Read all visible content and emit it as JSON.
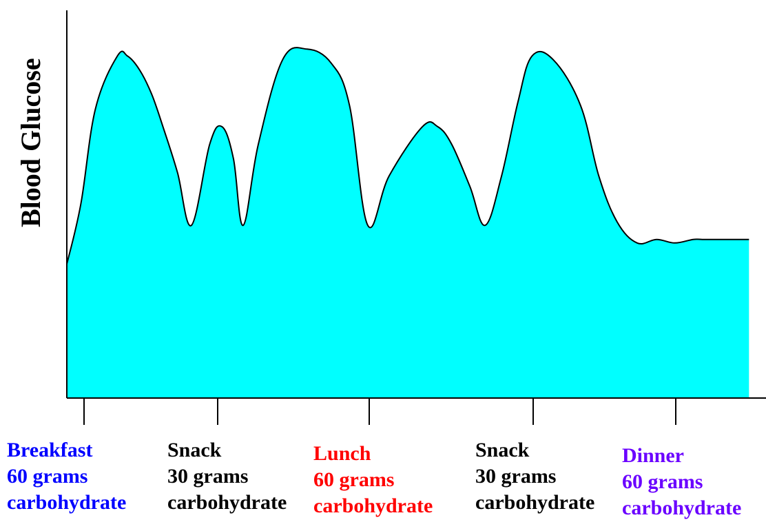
{
  "chart_data": {
    "type": "area",
    "title": "",
    "xlabel": "",
    "ylabel": "Blood Glucose",
    "fill_color": "#00ffff",
    "line_color": "#000000",
    "grid": false,
    "legend": "none",
    "meals": [
      {
        "name": "Breakfast",
        "amount": "60 grams",
        "unit": "carbohydrate",
        "color": "#0000ff"
      },
      {
        "name": "Snack",
        "amount": "30 grams",
        "unit": "carbohydrate",
        "color": "#000000"
      },
      {
        "name": "Lunch",
        "amount": "60 grams",
        "unit": "carbohydrate",
        "color": "#ff0000"
      },
      {
        "name": "Snack",
        "amount": "30 grams",
        "unit": "carbohydrate",
        "color": "#000000"
      },
      {
        "name": "Dinner",
        "amount": "60 grams",
        "unit": "carbohydrate",
        "color": "#6a00ff"
      }
    ],
    "curve": {
      "x": [
        0,
        0.23,
        0.47,
        0.83,
        1.0,
        1.2,
        1.4,
        1.6,
        1.82,
        2.05,
        2.35,
        2.55,
        2.74,
        2.9,
        3.15,
        3.55,
        3.95,
        4.35,
        4.65,
        4.95,
        5.3,
        5.85,
        6.1,
        6.33,
        6.63,
        6.88,
        7.15,
        7.42,
        7.65,
        8.0,
        8.45,
        8.75,
        9.05,
        9.38,
        9.7,
        10.0,
        10.3,
        10.45,
        10.58,
        10.75,
        11.0,
        11.22
      ],
      "y": [
        38,
        55,
        82,
        97,
        97,
        93,
        86,
        76,
        64,
        49,
        72,
        77,
        68,
        49,
        72,
        96,
        99,
        95,
        83,
        49,
        63,
        77,
        77,
        72,
        60,
        49,
        63,
        84,
        97,
        96,
        83,
        63,
        50,
        44,
        45,
        44,
        45,
        45,
        45,
        45,
        45,
        45
      ],
      "peaks": [
        0.83,
        2.74,
        4.35,
        6.45,
        8.5
      ]
    },
    "meal_x": [
      0.25,
      2.2,
      4.4,
      6.75,
      8.85
    ],
    "xlim": [
      0,
      11.5
    ],
    "ylim": [
      0,
      110
    ]
  }
}
